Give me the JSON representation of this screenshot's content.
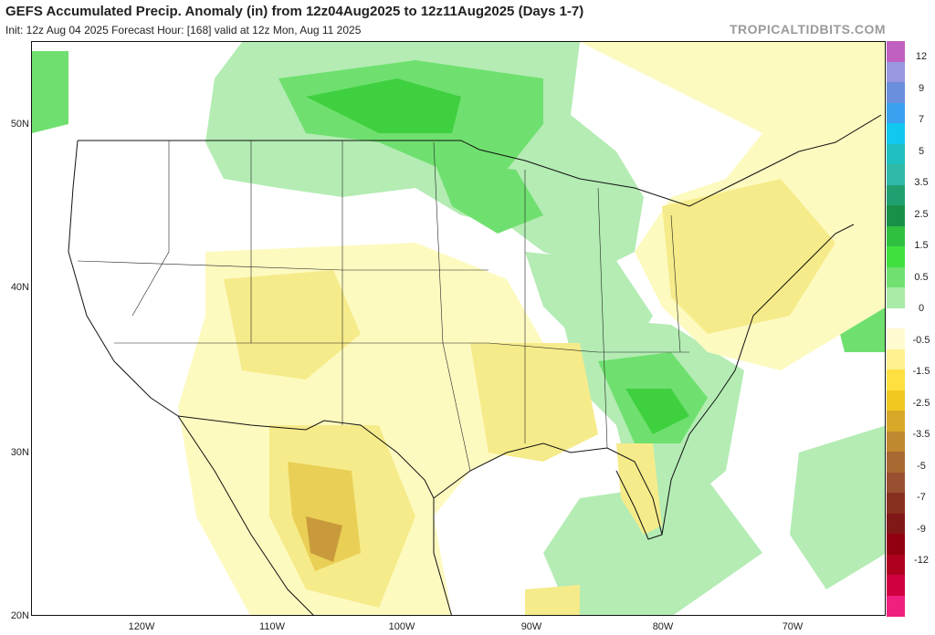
{
  "header": {
    "title": "GEFS Accumulated Precip. Anomaly (in) from 12z04Aug2025 to 12z11Aug2025 (Days 1-7)",
    "subtitle": "Init: 12z Aug 04 2025   Forecast Hour: [168]   valid at 12z Mon, Aug 11 2025",
    "watermark": "TROPICALTIDBITS.COM"
  },
  "axes": {
    "latitudes": [
      {
        "label": "50N"
      },
      {
        "label": "40N"
      },
      {
        "label": "30N"
      },
      {
        "label": "20N"
      }
    ],
    "longitudes": [
      {
        "label": "120W"
      },
      {
        "label": "110W"
      },
      {
        "label": "100W"
      },
      {
        "label": "90W"
      },
      {
        "label": "80W"
      },
      {
        "label": "70W"
      }
    ]
  },
  "colorbar": {
    "labels": [
      "12",
      "9",
      "7",
      "5",
      "3.5",
      "2.5",
      "1.5",
      "0.5",
      "0",
      "-0.5",
      "-1.5",
      "-2.5",
      "-3.5",
      "-5",
      "-7",
      "-9",
      "-12"
    ],
    "colors": [
      "#c060c0",
      "#9898e0",
      "#6a8fdc",
      "#3aa0f0",
      "#10c8f0",
      "#20c0c0",
      "#30b8a8",
      "#20a070",
      "#189048",
      "#30c040",
      "#40e040",
      "#70e070",
      "#a8eca8",
      "#ffffff",
      "#fffad0",
      "#fff090",
      "#ffe040",
      "#f0c820",
      "#d8a828",
      "#c08830",
      "#a86a30",
      "#985030",
      "#883020",
      "#801818",
      "#900010",
      "#b00020",
      "#d00040",
      "#f02080"
    ]
  },
  "legend_colors": {
    "wet_light": "#b4ecb4",
    "wet_mid": "#6fe06f",
    "wet_strong": "#3fd03f",
    "dry_light": "#fdfac0",
    "dry_mid": "#f6eb8a",
    "dry_strong": "#e9cf55",
    "dry_heavy": "#c99a3c"
  }
}
